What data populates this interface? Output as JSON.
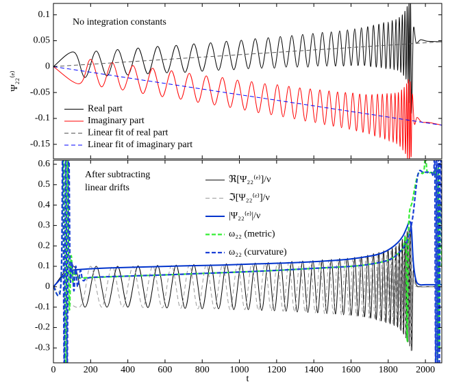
{
  "chart_data": [
    {
      "type": "line",
      "annotation": [
        "No integration constants"
      ],
      "ylabel": "Ψ₂₂⁽ᵉ⁾",
      "xlim": [
        0,
        2088
      ],
      "ylim": [
        -0.178,
        0.122
      ],
      "xticks": [
        0,
        200,
        400,
        600,
        800,
        1000,
        1200,
        1400,
        1600,
        1800,
        2000
      ],
      "yticks": [
        -0.15,
        -0.1,
        -0.05,
        0,
        0.05,
        0.1
      ],
      "legend": "lower left",
      "series": [
        {
          "name": "Real part",
          "color": "#000000",
          "style": "solid",
          "x": [
            0,
            110,
            170,
            230,
            288,
            345,
            400,
            455,
            508,
            560,
            610,
            660,
            708,
            755,
            800,
            845,
            888,
            930,
            970,
            1010,
            1048,
            1085,
            1120,
            1155,
            1188,
            1220,
            1251,
            1282,
            1311,
            1340,
            1368,
            1395,
            1421,
            1446,
            1470,
            1494,
            1517,
            1539,
            1560,
            1581,
            1601,
            1620,
            1638,
            1656,
            1673,
            1690,
            1706,
            1721,
            1736,
            1750,
            1763,
            1776,
            1788,
            1800,
            1811,
            1822,
            1832,
            1842,
            1851,
            1860,
            1868,
            1876,
            1883,
            1890,
            1896,
            1902,
            1907,
            1912,
            1916,
            1920,
            1926,
            1935,
            1950,
            1975,
            2010,
            2088
          ],
          "values": [
            0,
            0.028,
            -0.021,
            0.03,
            -0.018,
            0.033,
            -0.016,
            0.036,
            -0.014,
            0.039,
            -0.012,
            0.041,
            -0.011,
            0.044,
            -0.009,
            0.046,
            -0.007,
            0.049,
            -0.006,
            0.051,
            -0.004,
            0.054,
            -0.003,
            0.056,
            -0.003,
            0.058,
            -0.001,
            0.06,
            -0.001,
            0.062,
            -0.001,
            0.064,
            0.001,
            0.066,
            0.001,
            0.067,
            0.001,
            0.069,
            0.001,
            0.071,
            0.002,
            0.073,
            0.002,
            0.075,
            0.002,
            0.077,
            0.0,
            0.08,
            -0.001,
            0.082,
            -0.002,
            0.085,
            -0.004,
            0.086,
            -0.004,
            0.089,
            -0.006,
            0.091,
            -0.007,
            0.095,
            -0.011,
            0.1,
            -0.017,
            0.107,
            -0.024,
            0.116,
            -0.032,
            0.124,
            -0.07,
            0.13,
            -0.09,
            0.07,
            0.046,
            0.052,
            0.049,
            0.048
          ]
        },
        {
          "name": "Imaginary part",
          "color": "#ff0000",
          "style": "solid",
          "x": [
            0,
            140,
            200,
            259,
            316,
            372,
            428,
            481,
            534,
            585,
            635,
            684,
            731,
            777,
            822,
            866,
            909,
            950,
            990,
            1029,
            1066,
            1102,
            1137,
            1171,
            1204,
            1235,
            1266,
            1296,
            1325,
            1354,
            1381,
            1408,
            1433,
            1458,
            1482,
            1505,
            1528,
            1549,
            1570,
            1591,
            1610,
            1629,
            1647,
            1664,
            1681,
            1698,
            1713,
            1728,
            1743,
            1756,
            1769,
            1782,
            1794,
            1805,
            1816,
            1827,
            1837,
            1846,
            1855,
            1864,
            1872,
            1879,
            1886,
            1893,
            1899,
            1904,
            1909,
            1914,
            1918,
            1923,
            1929,
            1940,
            1955,
            1980,
            2020,
            2088
          ],
          "values": [
            0,
            -0.033,
            0.014,
            -0.039,
            0.008,
            -0.045,
            0.002,
            -0.052,
            -0.003,
            -0.058,
            -0.008,
            -0.063,
            -0.013,
            -0.069,
            -0.018,
            -0.074,
            -0.021,
            -0.079,
            -0.026,
            -0.084,
            -0.029,
            -0.089,
            -0.033,
            -0.093,
            -0.035,
            -0.097,
            -0.038,
            -0.101,
            -0.041,
            -0.105,
            -0.043,
            -0.108,
            -0.045,
            -0.112,
            -0.047,
            -0.115,
            -0.049,
            -0.118,
            -0.05,
            -0.121,
            -0.051,
            -0.124,
            -0.053,
            -0.127,
            -0.054,
            -0.13,
            -0.054,
            -0.134,
            -0.053,
            -0.137,
            -0.053,
            -0.14,
            -0.052,
            -0.144,
            -0.052,
            -0.146,
            -0.051,
            -0.149,
            -0.05,
            -0.154,
            -0.045,
            -0.161,
            -0.04,
            -0.168,
            -0.033,
            -0.177,
            -0.025,
            -0.186,
            -0.029,
            -0.174,
            -0.054,
            -0.11,
            -0.098,
            -0.107,
            -0.108,
            -0.113
          ]
        },
        {
          "name": "Linear fit of real part",
          "color": "#555555",
          "style": "dashed",
          "x": [
            0,
            2088
          ],
          "values": [
            0,
            0.048
          ]
        },
        {
          "name": "Linear fit of imaginary part",
          "color": "#0000ff",
          "style": "dashed",
          "x": [
            0,
            2088
          ],
          "values": [
            0,
            -0.113
          ]
        }
      ]
    },
    {
      "type": "line",
      "annotation": [
        "After subtracting",
        "linear drifts"
      ],
      "xlabel": "t",
      "xlim": [
        0,
        2088
      ],
      "ylim": [
        -0.373,
        0.62
      ],
      "xticks": [
        0,
        200,
        400,
        600,
        800,
        1000,
        1200,
        1400,
        1600,
        1800,
        2000
      ],
      "yticks": [
        -0.3,
        -0.2,
        -0.1,
        0,
        0.1,
        0.2,
        0.3,
        0.4,
        0.5,
        0.6
      ],
      "legend": "upper center",
      "series": [
        {
          "name": "ℜ[Ψ₂₂⁽ᵉ⁾]/ν",
          "color": "#000000",
          "style": "solid",
          "x": [
            0,
            110,
            170,
            230,
            288,
            345,
            400,
            455,
            508,
            560,
            610,
            660,
            708,
            755,
            800,
            845,
            888,
            930,
            970,
            1010,
            1048,
            1085,
            1120,
            1155,
            1188,
            1220,
            1251,
            1282,
            1311,
            1340,
            1368,
            1395,
            1421,
            1446,
            1470,
            1494,
            1517,
            1539,
            1560,
            1581,
            1601,
            1620,
            1638,
            1656,
            1673,
            1690,
            1706,
            1721,
            1736,
            1750,
            1763,
            1776,
            1788,
            1800,
            1811,
            1822,
            1832,
            1842,
            1851,
            1860,
            1868,
            1876,
            1883,
            1890,
            1896,
            1902,
            1907,
            1912,
            1916,
            1920,
            1926,
            1935,
            1950,
            1975,
            2010,
            2088
          ],
          "values": [
            0,
            0.1,
            -0.1,
            0.1,
            -0.1,
            0.1,
            -0.1,
            0.102,
            -0.102,
            0.104,
            -0.104,
            0.106,
            -0.106,
            0.108,
            -0.108,
            0.108,
            -0.108,
            0.112,
            -0.112,
            0.112,
            -0.112,
            0.116,
            -0.116,
            0.118,
            -0.118,
            0.12,
            -0.12,
            0.124,
            -0.124,
            0.126,
            -0.126,
            0.128,
            -0.128,
            0.132,
            -0.132,
            0.134,
            -0.134,
            0.138,
            -0.138,
            0.14,
            -0.14,
            0.144,
            -0.144,
            0.148,
            -0.148,
            0.154,
            -0.154,
            0.162,
            -0.162,
            0.168,
            -0.168,
            0.176,
            -0.176,
            0.182,
            -0.182,
            0.19,
            -0.19,
            0.198,
            -0.198,
            0.214,
            -0.214,
            0.232,
            -0.232,
            0.25,
            -0.25,
            0.27,
            -0.27,
            0.29,
            -0.29,
            0.3,
            -0.31,
            0.08,
            0.01,
            0,
            0,
            0
          ]
        },
        {
          "name": "ℑ[Ψ₂₂⁽ᵉ⁾]/ν",
          "color": "#999999",
          "style": "dashed",
          "x": [
            0,
            140,
            200,
            259,
            316,
            372,
            428,
            481,
            534,
            585,
            635,
            684,
            731,
            777,
            822,
            866,
            909,
            950,
            990,
            1029,
            1066,
            1102,
            1137,
            1171,
            1204,
            1235,
            1266,
            1296,
            1325,
            1354,
            1381,
            1408,
            1433,
            1458,
            1482,
            1505,
            1528,
            1549,
            1570,
            1591,
            1610,
            1629,
            1647,
            1664,
            1681,
            1698,
            1713,
            1728,
            1743,
            1756,
            1769,
            1782,
            1794,
            1805,
            1816,
            1827,
            1837,
            1846,
            1855,
            1864,
            1872,
            1879,
            1886,
            1893,
            1899,
            1904,
            1909,
            1914,
            1918,
            1923,
            1929,
            1940,
            1955,
            1980,
            2020,
            2088
          ],
          "values": [
            0,
            -0.1,
            0.1,
            -0.1,
            0.1,
            -0.1,
            0.1,
            -0.102,
            0.102,
            -0.104,
            0.104,
            -0.106,
            0.106,
            -0.108,
            0.108,
            -0.108,
            0.108,
            -0.112,
            0.112,
            -0.112,
            0.112,
            -0.116,
            0.116,
            -0.118,
            0.118,
            -0.12,
            0.12,
            -0.124,
            0.124,
            -0.126,
            0.126,
            -0.128,
            0.128,
            -0.132,
            0.132,
            -0.134,
            0.134,
            -0.138,
            0.138,
            -0.14,
            0.14,
            -0.144,
            0.144,
            -0.148,
            0.148,
            -0.154,
            0.154,
            -0.162,
            0.162,
            -0.168,
            0.168,
            -0.176,
            0.176,
            -0.182,
            0.182,
            -0.19,
            0.19,
            -0.198,
            0.198,
            -0.214,
            0.214,
            -0.232,
            0.232,
            -0.25,
            0.25,
            -0.27,
            0.27,
            -0.29,
            0.29,
            -0.32,
            0.15,
            0.02,
            0,
            0,
            0,
            0
          ]
        },
        {
          "name": "|Ψ₂₂⁽ᵉ⁾|/ν",
          "color": "#0033cc",
          "style": "thick",
          "x": [
            0,
            30,
            60,
            100,
            150,
            200,
            300,
            500,
            700,
            900,
            1100,
            1300,
            1500,
            1600,
            1700,
            1750,
            1800,
            1850,
            1880,
            1900,
            1915,
            1925,
            1935,
            1950,
            1970,
            2000,
            2088
          ],
          "values": [
            0,
            0.03,
            0.06,
            0.08,
            0.085,
            0.088,
            0.092,
            0.097,
            0.102,
            0.106,
            0.112,
            0.118,
            0.128,
            0.136,
            0.15,
            0.16,
            0.18,
            0.215,
            0.25,
            0.29,
            0.32,
            0.28,
            0.12,
            0.03,
            0.01,
            0.01,
            0.01
          ]
        },
        {
          "name": "ω₂₂ (metric)",
          "color": "#33ee33",
          "style": "thick-dashed",
          "x": [
            0,
            40,
            55,
            65,
            75,
            85,
            95,
            105,
            115,
            130,
            200,
            400,
            600,
            800,
            1000,
            1200,
            1400,
            1600,
            1700,
            1800,
            1850,
            1880,
            1895,
            1902,
            1910,
            1930,
            1960,
            1990,
            2000,
            2010,
            2030,
            2050,
            2060,
            2065,
            2070,
            2075,
            2080,
            2088
          ],
          "values": [
            0,
            0.01,
            0.7,
            -0.4,
            0.65,
            -0.1,
            0.15,
            0.02,
            0.08,
            0.045,
            0.045,
            0.052,
            0.058,
            0.065,
            0.072,
            0.08,
            0.09,
            0.1,
            0.11,
            0.13,
            0.16,
            0.19,
            0.22,
            -0.27,
            0.3,
            0.42,
            0.55,
            0.56,
            0.65,
            0.56,
            0.56,
            0.55,
            0.5,
            -0.4,
            0.6,
            -0.3,
            0.4,
            0.1
          ]
        },
        {
          "name": "ω₂₂ (curvature)",
          "color": "#1a3fd6",
          "style": "thick-dashed",
          "x": [
            0,
            40,
            50,
            58,
            66,
            74,
            82,
            90,
            100,
            110,
            120,
            130,
            145,
            160,
            200,
            400,
            600,
            800,
            1000,
            1200,
            1400,
            1600,
            1700,
            1800,
            1850,
            1900,
            1930,
            1960,
            1990,
            2030,
            2045,
            2050,
            2055,
            2060,
            2065,
            2070,
            2075,
            2080,
            2088
          ],
          "values": [
            0,
            0.01,
            0.7,
            -0.4,
            0.7,
            -0.4,
            0.7,
            0.05,
            0.12,
            -0.02,
            0.1,
            0,
            0.08,
            0.03,
            0.045,
            0.052,
            0.058,
            0.065,
            0.072,
            0.08,
            0.09,
            0.1,
            0.11,
            0.13,
            0.16,
            0.22,
            0.33,
            0.55,
            0.56,
            0.56,
            0.55,
            0.7,
            -0.4,
            0.7,
            -0.4,
            0.7,
            -0.4,
            0.7,
            0.2
          ]
        }
      ]
    }
  ]
}
